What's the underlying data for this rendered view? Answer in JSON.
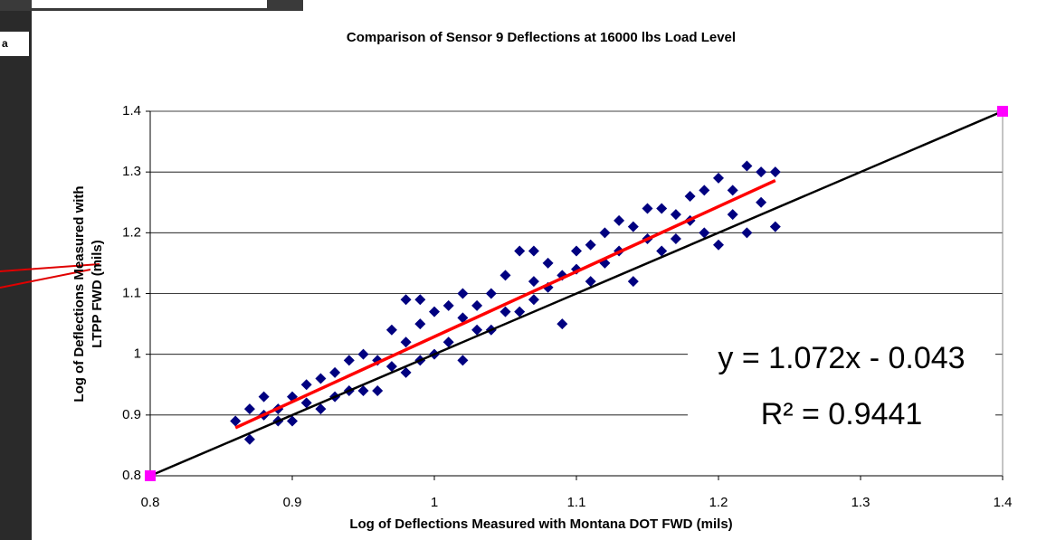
{
  "background_fragment": "a",
  "chart_data": {
    "type": "scatter",
    "title": "Comparison of Sensor 9 Deflections at 16000 lbs Load Level",
    "xlabel": "Log of Deflections Measured with Montana DOT FWD (mils)",
    "ylabel": [
      "Log of Deflections Measured with",
      "LTPP FWD (mils)"
    ],
    "annotations": [
      "y = 1.072x - 0.043",
      "R² = 0.9441"
    ],
    "color": "#000080",
    "x": [
      0.86,
      0.87,
      0.87,
      0.88,
      0.88,
      0.89,
      0.89,
      0.9,
      0.9,
      0.91,
      0.91,
      0.92,
      0.92,
      0.93,
      0.93,
      0.94,
      0.94,
      0.95,
      0.95,
      0.96,
      0.96,
      0.97,
      0.97,
      0.98,
      0.98,
      0.98,
      0.99,
      0.99,
      0.99,
      1.0,
      1.0,
      1.01,
      1.01,
      1.02,
      1.02,
      1.02,
      1.03,
      1.03,
      1.04,
      1.04,
      1.05,
      1.05,
      1.06,
      1.06,
      1.07,
      1.07,
      1.07,
      1.08,
      1.08,
      1.09,
      1.09,
      1.1,
      1.1,
      1.11,
      1.11,
      1.12,
      1.12,
      1.13,
      1.13,
      1.14,
      1.14,
      1.15,
      1.15,
      1.16,
      1.16,
      1.17,
      1.17,
      1.18,
      1.18,
      1.19,
      1.19,
      1.2,
      1.2,
      1.21,
      1.21,
      1.22,
      1.22,
      1.23,
      1.23,
      1.24,
      1.24
    ],
    "values": [
      0.89,
      0.86,
      0.91,
      0.9,
      0.93,
      0.89,
      0.91,
      0.89,
      0.93,
      0.92,
      0.95,
      0.91,
      0.96,
      0.93,
      0.97,
      0.94,
      0.99,
      0.94,
      1.0,
      0.94,
      0.99,
      0.98,
      1.04,
      0.97,
      1.09,
      1.02,
      0.99,
      1.09,
      1.05,
      1.0,
      1.07,
      1.02,
      1.08,
      0.99,
      1.06,
      1.1,
      1.04,
      1.08,
      1.04,
      1.1,
      1.07,
      1.13,
      1.07,
      1.17,
      1.09,
      1.17,
      1.12,
      1.11,
      1.15,
      1.05,
      1.13,
      1.14,
      1.17,
      1.12,
      1.18,
      1.15,
      1.2,
      1.17,
      1.22,
      1.12,
      1.21,
      1.19,
      1.24,
      1.17,
      1.24,
      1.19,
      1.23,
      1.22,
      1.26,
      1.2,
      1.27,
      1.18,
      1.29,
      1.23,
      1.27,
      1.2,
      1.31,
      1.25,
      1.3,
      1.21,
      1.3
    ],
    "trendline": {
      "x": [
        0.86,
        1.24
      ],
      "values": [
        0.879,
        1.286
      ],
      "color": "#ff0000"
    },
    "equality_line": {
      "x": [
        0.8,
        1.4
      ],
      "values": [
        0.8,
        1.4
      ],
      "color": "#000000",
      "marker_color": "#ff00ff"
    },
    "xlim": [
      0.8,
      1.4
    ],
    "xticks": [
      0.8,
      0.9,
      1,
      1.1,
      1.2,
      1.3,
      1.4
    ],
    "ylim": [
      0.8,
      1.4
    ],
    "yticks": [
      0.8,
      0.9,
      1,
      1.1,
      1.2,
      1.3,
      1.4
    ],
    "grid": true
  }
}
